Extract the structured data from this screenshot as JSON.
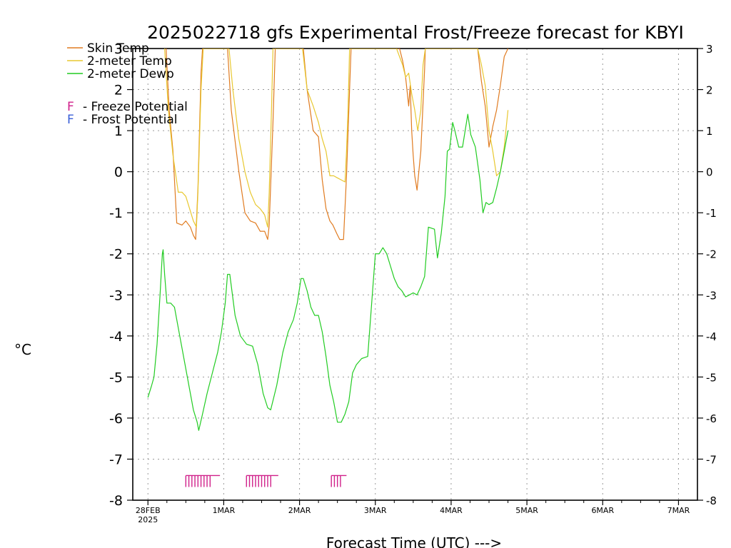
{
  "chart_data": {
    "type": "line",
    "title": "2025022718 gfs Experimental Frost/Freeze forecast for KBYI",
    "xlabel": "Forecast Time (UTC) --->",
    "ylabel": "°C",
    "ylim": [
      -8,
      3
    ],
    "xlim": [
      -0.2,
      7.25
    ],
    "yticks": [
      -8,
      -7,
      -6,
      -5,
      -4,
      -3,
      -2,
      -1,
      0,
      1,
      2,
      3
    ],
    "xticks": [
      {
        "x": 0,
        "label": "28FEB",
        "sublabel": "2025"
      },
      {
        "x": 1,
        "label": "1MAR",
        "sublabel": ""
      },
      {
        "x": 2,
        "label": "2MAR",
        "sublabel": ""
      },
      {
        "x": 3,
        "label": "3MAR",
        "sublabel": ""
      },
      {
        "x": 4,
        "label": "4MAR",
        "sublabel": ""
      },
      {
        "x": 5,
        "label": "5MAR",
        "sublabel": ""
      },
      {
        "x": 6,
        "label": "6MAR",
        "sublabel": ""
      },
      {
        "x": 7,
        "label": "7MAR",
        "sublabel": ""
      }
    ],
    "grid": true,
    "colors": {
      "skin": "#e07b20",
      "t2m": "#e8c830",
      "dewp": "#22cc22",
      "freeze": "#d0208a",
      "frost": "#3a5fd8"
    },
    "legend": [
      {
        "letter": "",
        "text": "Skin Temp",
        "color": "#e07b20",
        "kind": "line"
      },
      {
        "letter": "",
        "text": "2-meter Temp",
        "color": "#e8c830",
        "kind": "line"
      },
      {
        "letter": "",
        "text": "2-meter Dewp",
        "color": "#22cc22",
        "kind": "line"
      },
      {
        "letter": "F",
        "text": "- Freeze Potential",
        "color": "#d0208a",
        "kind": "letter"
      },
      {
        "letter": "F",
        "text": "- Frost Potential",
        "color": "#3a5fd8",
        "kind": "letter"
      }
    ],
    "series": [
      {
        "name": "Skin Temp",
        "color": "#e07b20",
        "x": [
          0.24,
          0.28,
          0.33,
          0.38,
          0.45,
          0.5,
          0.56,
          0.6,
          0.63,
          0.66,
          0.7,
          0.72,
          1.05,
          1.1,
          1.2,
          1.28,
          1.35,
          1.42,
          1.48,
          1.54,
          1.58,
          1.6,
          1.65,
          1.68,
          2.05,
          2.1,
          2.18,
          2.25,
          2.3,
          2.35,
          2.4,
          2.44,
          2.49,
          2.53,
          2.58,
          2.62,
          2.66,
          2.68,
          3.32,
          3.36,
          3.4,
          3.44,
          3.46,
          3.48,
          3.5,
          3.52,
          3.55,
          3.6,
          3.65,
          3.66,
          4.35,
          4.4,
          4.45,
          4.5,
          4.55,
          4.6,
          4.65,
          4.7,
          4.75
        ],
        "y": [
          3.0,
          1.5,
          0.5,
          -1.25,
          -1.3,
          -1.2,
          -1.35,
          -1.55,
          -1.65,
          -0.4,
          2.4,
          3.0,
          3.0,
          1.5,
          0.0,
          -1.0,
          -1.2,
          -1.25,
          -1.45,
          -1.45,
          -1.65,
          -1.3,
          1.2,
          3.0,
          3.0,
          2.0,
          1.0,
          0.85,
          -0.2,
          -0.9,
          -1.2,
          -1.3,
          -1.5,
          -1.65,
          -1.65,
          -0.1,
          2.0,
          3.0,
          3.0,
          2.7,
          2.3,
          1.6,
          2.1,
          1.0,
          0.4,
          -0.1,
          -0.45,
          0.5,
          2.5,
          3.0,
          3.0,
          2.2,
          1.6,
          0.6,
          1.1,
          1.5,
          2.1,
          2.8,
          3.0
        ]
      },
      {
        "name": "2-meter Temp",
        "color": "#e8c830",
        "x": [
          0.22,
          0.27,
          0.33,
          0.4,
          0.45,
          0.5,
          0.55,
          0.6,
          0.64,
          0.66,
          0.7,
          0.73,
          1.07,
          1.12,
          1.2,
          1.28,
          1.35,
          1.42,
          1.48,
          1.54,
          1.58,
          1.6,
          1.63,
          1.65,
          1.68,
          2.04,
          2.1,
          2.18,
          2.25,
          2.3,
          2.35,
          2.4,
          2.45,
          2.5,
          2.55,
          2.6,
          2.62,
          2.64,
          2.66,
          3.28,
          3.32,
          3.36,
          3.4,
          3.44,
          3.48,
          3.52,
          3.56,
          3.6,
          3.63,
          3.66,
          4.35,
          4.4,
          4.45,
          4.5,
          4.55,
          4.6,
          4.65,
          4.7,
          4.75
        ],
        "y": [
          3.0,
          1.5,
          0.4,
          -0.5,
          -0.5,
          -0.6,
          -0.9,
          -1.2,
          -1.35,
          -0.5,
          2.0,
          3.0,
          3.0,
          2.0,
          0.8,
          0.0,
          -0.5,
          -0.8,
          -0.9,
          -1.05,
          -1.35,
          -0.5,
          1.5,
          3.0,
          3.0,
          3.0,
          2.0,
          1.6,
          1.2,
          0.8,
          0.5,
          -0.1,
          -0.1,
          -0.15,
          -0.2,
          -0.25,
          0.5,
          1.5,
          3.0,
          3.0,
          2.8,
          2.6,
          2.3,
          2.4,
          1.9,
          1.5,
          1.0,
          1.5,
          2.6,
          3.0,
          3.0,
          2.6,
          2.1,
          1.0,
          0.5,
          -0.1,
          0.0,
          0.6,
          1.5
        ]
      },
      {
        "name": "2-meter Dewp",
        "color": "#22cc22",
        "x": [
          0.0,
          0.05,
          0.08,
          0.12,
          0.16,
          0.19,
          0.2,
          0.22,
          0.25,
          0.3,
          0.35,
          0.42,
          0.5,
          0.55,
          0.6,
          0.65,
          0.67,
          0.72,
          0.78,
          0.85,
          0.92,
          0.97,
          1.02,
          1.05,
          1.08,
          1.15,
          1.22,
          1.3,
          1.38,
          1.45,
          1.52,
          1.58,
          1.62,
          1.7,
          1.78,
          1.85,
          1.92,
          1.97,
          2.02,
          2.05,
          2.1,
          2.15,
          2.2,
          2.25,
          2.3,
          2.35,
          2.4,
          2.45,
          2.5,
          2.55,
          2.6,
          2.65,
          2.7,
          2.75,
          2.82,
          2.9,
          3.0,
          3.05,
          3.1,
          3.15,
          3.2,
          3.25,
          3.3,
          3.35,
          3.4,
          3.45,
          3.5,
          3.55,
          3.6,
          3.65,
          3.7,
          3.78,
          3.82,
          3.87,
          3.92,
          3.95,
          3.98,
          4.02,
          4.05,
          4.1,
          4.15,
          4.22,
          4.26,
          4.32,
          4.38,
          4.42,
          4.46,
          4.5,
          4.55,
          4.6,
          4.65,
          4.7,
          4.75
        ],
        "y": [
          -5.5,
          -5.2,
          -5.0,
          -4.2,
          -3.0,
          -2.0,
          -1.9,
          -2.5,
          -3.2,
          -3.2,
          -3.3,
          -4.0,
          -4.8,
          -5.3,
          -5.8,
          -6.1,
          -6.3,
          -5.9,
          -5.4,
          -4.9,
          -4.4,
          -3.9,
          -3.2,
          -2.5,
          -2.5,
          -3.5,
          -4.0,
          -4.2,
          -4.25,
          -4.7,
          -5.4,
          -5.75,
          -5.8,
          -5.2,
          -4.4,
          -3.9,
          -3.6,
          -3.2,
          -2.6,
          -2.6,
          -2.9,
          -3.3,
          -3.5,
          -3.5,
          -3.9,
          -4.5,
          -5.2,
          -5.6,
          -6.1,
          -6.1,
          -5.9,
          -5.6,
          -4.9,
          -4.7,
          -4.55,
          -4.5,
          -2.0,
          -2.0,
          -1.85,
          -2.0,
          -2.3,
          -2.6,
          -2.8,
          -2.9,
          -3.05,
          -3.0,
          -2.95,
          -3.0,
          -2.8,
          -2.55,
          -1.35,
          -1.4,
          -2.1,
          -1.5,
          -0.6,
          0.5,
          0.55,
          1.2,
          1.0,
          0.6,
          0.6,
          1.4,
          0.9,
          0.6,
          -0.2,
          -1.0,
          -0.75,
          -0.8,
          -0.75,
          -0.4,
          0.0,
          0.5,
          1.0
        ]
      }
    ],
    "freeze_markers": [
      {
        "x_start": 0.5,
        "x_end": 0.95,
        "y": -7.4,
        "ticks": [
          0.5,
          0.54,
          0.58,
          0.62,
          0.66,
          0.7,
          0.74,
          0.78,
          0.82
        ]
      },
      {
        "x_start": 1.3,
        "x_end": 1.72,
        "y": -7.4,
        "ticks": [
          1.3,
          1.34,
          1.38,
          1.42,
          1.46,
          1.5,
          1.54,
          1.58,
          1.62
        ]
      },
      {
        "x_start": 2.42,
        "x_end": 2.62,
        "y": -7.4,
        "ticks": [
          2.42,
          2.46,
          2.5,
          2.54
        ]
      }
    ]
  }
}
